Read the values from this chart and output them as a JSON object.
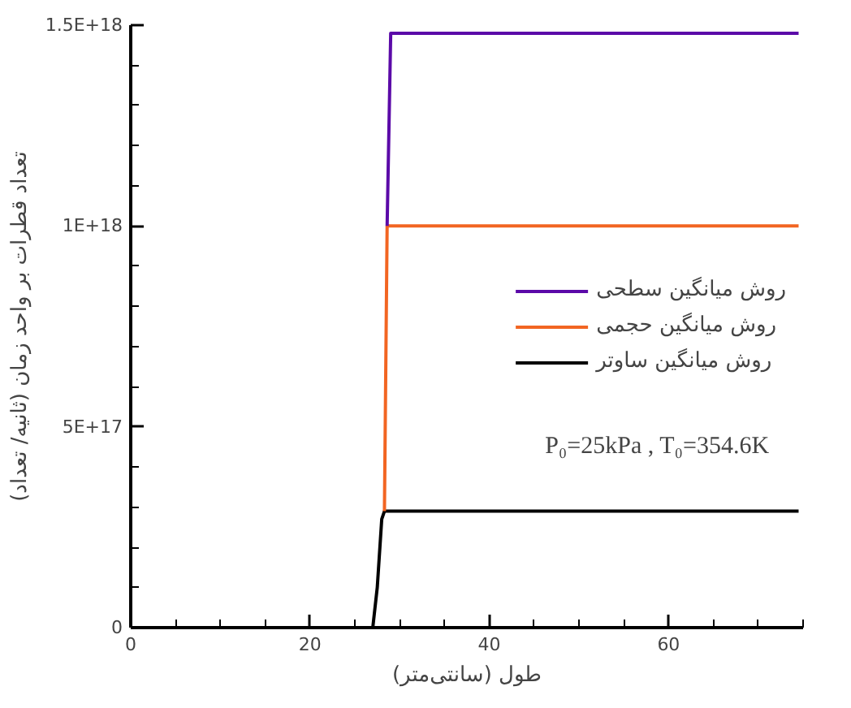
{
  "chart_data": {
    "type": "line",
    "xlabel": "طول (سانتی‌متر)",
    "ylabel": "تعداد قطرات بر واحد زمان (ثانیه/ تعداد)",
    "xlim": [
      0,
      75
    ],
    "ylim": [
      0,
      1.5e+18
    ],
    "xticks": [
      0,
      20,
      40,
      60
    ],
    "yticks": [
      0,
      {
        "value": 5e+17,
        "label": "5E+17"
      },
      {
        "value": 1e+18,
        "label": "1E+18"
      },
      {
        "value": 1.5e+18,
        "label": "1.5E+18"
      }
    ],
    "grid": false,
    "legend": "right",
    "marker": "none",
    "line_style": "solid",
    "annotations": [
      "P₀=25kPa , T₀=354.6K"
    ],
    "series": [
      {
        "name": "روش میانگین سطحی",
        "color": "#5b0aa8",
        "x": [
          28.6,
          29,
          74.5
        ],
        "values": [
          1e+18,
          1.48e+18,
          1.48e+18
        ]
      },
      {
        "name": "روش میانگین حجمی",
        "color": "#f26522",
        "x": [
          28.3,
          28.6,
          74.5
        ],
        "values": [
          2.9e+17,
          1e+18,
          1e+18
        ]
      },
      {
        "name": "روش میانگین ساوتر",
        "color": "#000000",
        "x": [
          0,
          27,
          27.5,
          28,
          28.3,
          74.5
        ],
        "values": [
          0,
          0,
          1e+17,
          2.7e+17,
          2.9e+17,
          2.9e+17
        ]
      }
    ]
  }
}
